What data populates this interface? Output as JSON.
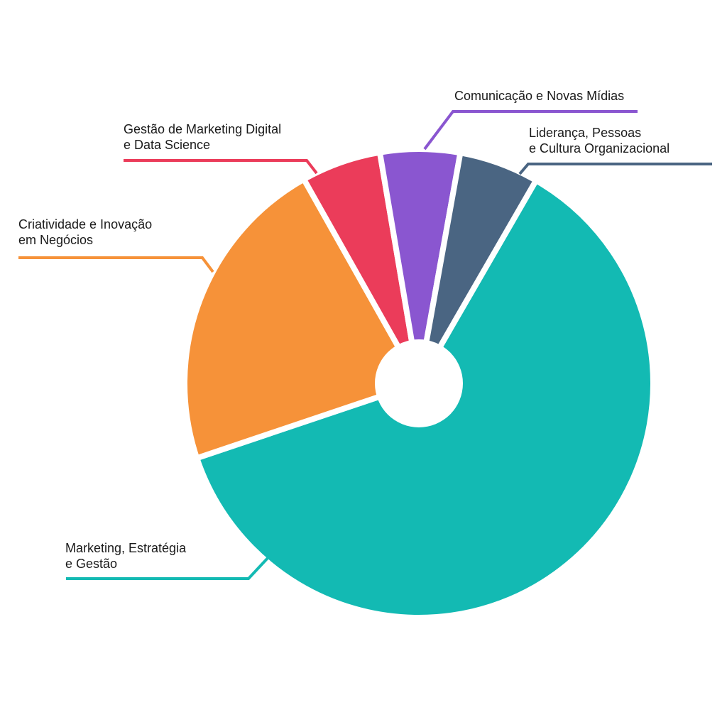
{
  "chart_data": {
    "type": "pie",
    "title": "",
    "donut": true,
    "slices": [
      {
        "label_lines": [
          "Marketing, Estratégia",
          "e Gestão"
        ],
        "value": 61.5,
        "color": "#13bab3"
      },
      {
        "label_lines": [
          "Criatividade e Inovação",
          "em Negócios"
        ],
        "value": 22.0,
        "color": "#f69239"
      },
      {
        "label_lines": [
          "Gestão de Marketing Digital",
          "e Data Science"
        ],
        "value": 5.5,
        "color": "#eb3c5a"
      },
      {
        "label_lines": [
          "Comunicação e Novas Mídias"
        ],
        "value": 5.5,
        "color": "#8a56d0"
      },
      {
        "label_lines": [
          "Liderança, Pessoas",
          "e Cultura Organizacional"
        ],
        "value": 5.5,
        "color": "#4a6582"
      }
    ]
  }
}
